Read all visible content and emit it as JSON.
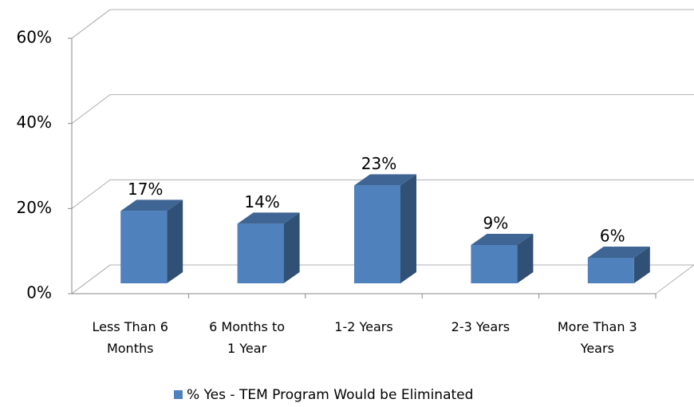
{
  "chart_data": {
    "type": "bar3d",
    "categories": [
      "Less Than 6 Months",
      "6 Months to 1 Year",
      "1-2 Years",
      "2-3 Years",
      "More Than 3 Years"
    ],
    "series": [
      {
        "name": "% Yes - TEM Program Would be Eliminated",
        "color": "#4f81bd",
        "values": [
          17,
          14,
          23,
          9,
          6
        ],
        "value_labels": [
          "17%",
          "14%",
          "23%",
          "9%",
          "6%"
        ]
      }
    ],
    "ylim": [
      0,
      60
    ],
    "yticks": [
      {
        "value": 0,
        "label": "0%"
      },
      {
        "value": 20,
        "label": "20%"
      },
      {
        "value": 40,
        "label": "40%"
      },
      {
        "value": 60,
        "label": "60%"
      }
    ],
    "grid": true,
    "legend": "bottom"
  }
}
